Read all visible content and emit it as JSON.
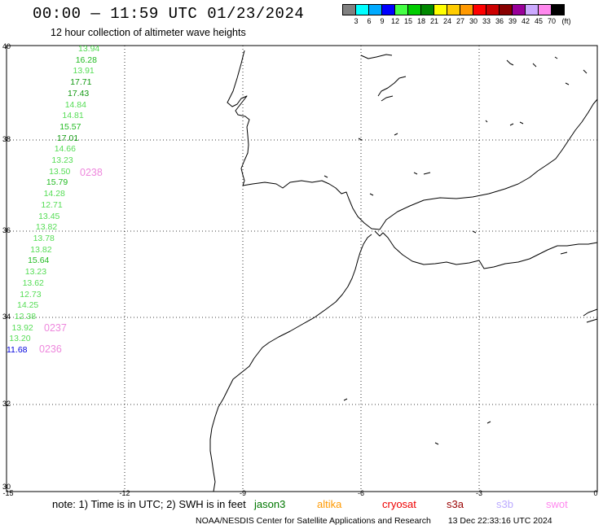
{
  "title": "00:00 — 11:59 UTC 01/23/2024",
  "subtitle": "12 hour collection of altimeter wave heights",
  "legend": {
    "colors": [
      "#808080",
      "#00ffff",
      "#00aaff",
      "#0000ff",
      "#44ff44",
      "#00cc00",
      "#008800",
      "#ffff00",
      "#ffcc00",
      "#ff9900",
      "#ff0000",
      "#cc0000",
      "#880000",
      "#990099",
      "#ccaaff",
      "#ff88ee",
      "#000000"
    ],
    "ticks": [
      "3",
      "6",
      "9",
      "12",
      "15",
      "18",
      "21",
      "24",
      "27",
      "30",
      "33",
      "36",
      "39",
      "42",
      "45",
      "70"
    ],
    "unit": "(ft)"
  },
  "axes": {
    "lat_labels": [
      "40",
      "38",
      "36",
      "34",
      "32",
      "30"
    ],
    "lon_labels": [
      "-15",
      "-12",
      "-9",
      "-6",
      "-3",
      "0"
    ]
  },
  "wave_heights": [
    {
      "value": "13.94",
      "color": "#55dd55"
    },
    {
      "value": "16.28",
      "color": "#22bb22"
    },
    {
      "value": "13.91",
      "color": "#55dd55"
    },
    {
      "value": "17.71",
      "color": "#119911"
    },
    {
      "value": "17.43",
      "color": "#119911"
    },
    {
      "value": "14.84",
      "color": "#55dd55"
    },
    {
      "value": "14.81",
      "color": "#55dd55"
    },
    {
      "value": "15.57",
      "color": "#22bb22"
    },
    {
      "value": "17.01",
      "color": "#119911"
    },
    {
      "value": "14.66",
      "color": "#55dd55"
    },
    {
      "value": "13.23",
      "color": "#55dd55"
    },
    {
      "value": "13.50",
      "color": "#55dd55"
    },
    {
      "value": "15.79",
      "color": "#22bb22"
    },
    {
      "value": "14.28",
      "color": "#55dd55"
    },
    {
      "value": "12.71",
      "color": "#55dd55"
    },
    {
      "value": "13.45",
      "color": "#55dd55"
    },
    {
      "value": "13.82",
      "color": "#55dd55"
    },
    {
      "value": "13.78",
      "color": "#55dd55"
    },
    {
      "value": "13.82",
      "color": "#55dd55"
    },
    {
      "value": "15.64",
      "color": "#22bb22"
    },
    {
      "value": "13.23",
      "color": "#55dd55"
    },
    {
      "value": "13.62",
      "color": "#55dd55"
    },
    {
      "value": "12.73",
      "color": "#55dd55"
    },
    {
      "value": "14.25",
      "color": "#55dd55"
    },
    {
      "value": "12.38",
      "color": "#55dd55"
    },
    {
      "value": "13.92",
      "color": "#55dd55"
    },
    {
      "value": "13.20",
      "color": "#55dd55"
    },
    {
      "value": "11.68",
      "color": "#0000dd"
    }
  ],
  "pass_times": [
    {
      "value": "0238",
      "color": "#ee88dd"
    },
    {
      "value": "0237",
      "color": "#ee88dd"
    },
    {
      "value": "0236",
      "color": "#ee88dd"
    }
  ],
  "note": "note:  1) Time is in UTC;  2) SWH is in feet",
  "satellites": [
    {
      "name": "jason3",
      "color": "#007700"
    },
    {
      "name": "altika",
      "color": "#ff9900"
    },
    {
      "name": "cryosat",
      "color": "#ee0000"
    },
    {
      "name": "s3a",
      "color": "#990000"
    },
    {
      "name": "s3b",
      "color": "#bbaaff"
    },
    {
      "name": "swot",
      "color": "#ff88ee"
    }
  ],
  "footer": {
    "credit": "NOAA/NESDIS Center for Satellite Applications and Research",
    "timestamp": "13 Dec 22:33:16 UTC 2024"
  }
}
